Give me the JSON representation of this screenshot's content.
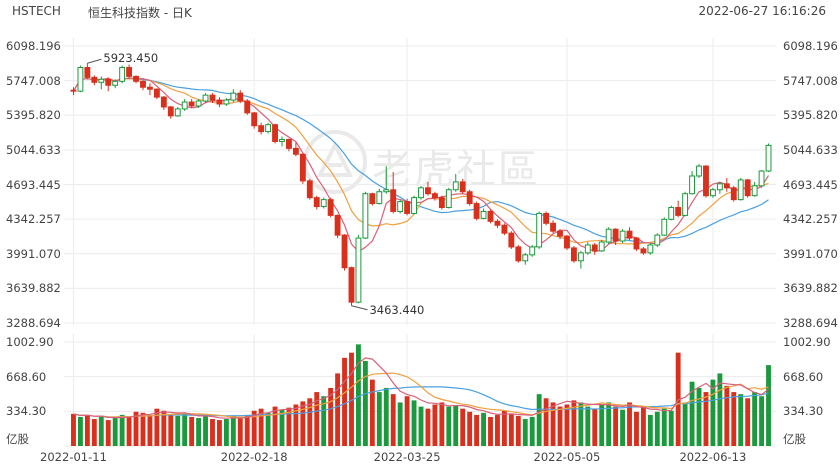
{
  "header": {
    "symbol": "HSTECH",
    "name": "恒生科技指数",
    "period": "- 日K",
    "datetime": "2022-06-27 16:16:26"
  },
  "watermark": {
    "text": "老虎社區",
    "icon": "tiger-logo-icon"
  },
  "colors": {
    "up": "#1a9a3c",
    "down": "#d9301e",
    "ma5": "#d9607a",
    "ma10": "#f0a040",
    "ma20": "#4aa0e0",
    "grid": "#ececec"
  },
  "chart_data": {
    "type": "candlestick",
    "price_axis": {
      "ticks": [
        "6098.196",
        "5747.008",
        "5395.820",
        "5044.633",
        "4693.445",
        "4342.257",
        "3991.070",
        "3639.882",
        "3288.694"
      ],
      "ylim": [
        3288.694,
        6098.196
      ]
    },
    "volume_axis": {
      "ticks": [
        "1002.90",
        "668.60",
        "334.30",
        "亿股"
      ],
      "ylim": [
        0,
        1002.9
      ],
      "unit": "亿股"
    },
    "x_ticks": [
      "2022-01-11",
      "2022-02-18",
      "2022-03-25",
      "2022-05-05",
      "2022-06-13"
    ],
    "annotations": [
      {
        "text": "5923.450",
        "value": 5923.45
      },
      {
        "text": "3463.440",
        "value": 3463.44
      }
    ],
    "ohlc": [
      [
        5650,
        5680,
        5600,
        5640
      ],
      [
        5640,
        5900,
        5630,
        5880
      ],
      [
        5880,
        5923.45,
        5760,
        5780
      ],
      [
        5780,
        5800,
        5700,
        5730
      ],
      [
        5730,
        5790,
        5660,
        5760
      ],
      [
        5760,
        5780,
        5640,
        5700
      ],
      [
        5700,
        5760,
        5670,
        5740
      ],
      [
        5740,
        5900,
        5720,
        5880
      ],
      [
        5880,
        5910,
        5770,
        5790
      ],
      [
        5790,
        5800,
        5720,
        5740
      ],
      [
        5740,
        5750,
        5650,
        5680
      ],
      [
        5680,
        5720,
        5600,
        5660
      ],
      [
        5660,
        5670,
        5560,
        5580
      ],
      [
        5580,
        5590,
        5450,
        5480
      ],
      [
        5480,
        5490,
        5360,
        5390
      ],
      [
        5390,
        5480,
        5380,
        5460
      ],
      [
        5460,
        5560,
        5440,
        5530
      ],
      [
        5530,
        5560,
        5470,
        5490
      ],
      [
        5490,
        5560,
        5470,
        5540
      ],
      [
        5540,
        5620,
        5520,
        5600
      ],
      [
        5600,
        5620,
        5520,
        5550
      ],
      [
        5550,
        5580,
        5480,
        5510
      ],
      [
        5510,
        5570,
        5490,
        5550
      ],
      [
        5550,
        5660,
        5530,
        5620
      ],
      [
        5620,
        5650,
        5520,
        5540
      ],
      [
        5540,
        5560,
        5400,
        5420
      ],
      [
        5420,
        5430,
        5260,
        5290
      ],
      [
        5290,
        5320,
        5200,
        5230
      ],
      [
        5230,
        5320,
        5210,
        5300
      ],
      [
        5300,
        5310,
        5110,
        5130
      ],
      [
        5130,
        5180,
        5080,
        5150
      ],
      [
        5150,
        5160,
        5030,
        5060
      ],
      [
        5060,
        5120,
        4980,
        5000
      ],
      [
        5000,
        5010,
        4700,
        4730
      ],
      [
        4730,
        4750,
        4540,
        4560
      ],
      [
        4560,
        4580,
        4440,
        4470
      ],
      [
        4470,
        4560,
        4450,
        4540
      ],
      [
        4540,
        4560,
        4360,
        4380
      ],
      [
        4380,
        4390,
        4150,
        4180
      ],
      [
        4180,
        4190,
        3820,
        3850
      ],
      [
        3850,
        3860,
        3463.44,
        3500
      ],
      [
        3500,
        4180,
        3490,
        4150
      ],
      [
        4150,
        4620,
        4140,
        4600
      ],
      [
        4600,
        4610,
        4480,
        4500
      ],
      [
        4500,
        4650,
        4490,
        4620
      ],
      [
        4620,
        4880,
        4600,
        4640
      ],
      [
        4640,
        4820,
        4400,
        4420
      ],
      [
        4420,
        4540,
        4400,
        4520
      ],
      [
        4520,
        4550,
        4380,
        4400
      ],
      [
        4400,
        4580,
        4390,
        4560
      ],
      [
        4560,
        4680,
        4540,
        4660
      ],
      [
        4660,
        4720,
        4580,
        4600
      ],
      [
        4600,
        4620,
        4530,
        4560
      ],
      [
        4560,
        4580,
        4440,
        4460
      ],
      [
        4460,
        4660,
        4450,
        4640
      ],
      [
        4640,
        4800,
        4620,
        4720
      ],
      [
        4720,
        4750,
        4600,
        4620
      ],
      [
        4620,
        4640,
        4480,
        4500
      ],
      [
        4500,
        4520,
        4330,
        4350
      ],
      [
        4350,
        4450,
        4340,
        4420
      ],
      [
        4420,
        4440,
        4300,
        4320
      ],
      [
        4320,
        4340,
        4250,
        4280
      ],
      [
        4280,
        4300,
        4180,
        4200
      ],
      [
        4200,
        4220,
        4040,
        4060
      ],
      [
        4060,
        4080,
        3900,
        3920
      ],
      [
        3920,
        4000,
        3880,
        3980
      ],
      [
        3980,
        4080,
        3960,
        4060
      ],
      [
        4060,
        4420,
        4040,
        4400
      ],
      [
        4400,
        4420,
        4280,
        4300
      ],
      [
        4300,
        4330,
        4200,
        4220
      ],
      [
        4220,
        4240,
        4140,
        4170
      ],
      [
        4170,
        4180,
        4030,
        4050
      ],
      [
        4050,
        4070,
        3900,
        3920
      ],
      [
        3920,
        4020,
        3840,
        4000
      ],
      [
        4000,
        4110,
        3980,
        4080
      ],
      [
        4080,
        4100,
        3980,
        4020
      ],
      [
        4020,
        4130,
        4010,
        4110
      ],
      [
        4110,
        4260,
        4090,
        4240
      ],
      [
        4240,
        4250,
        4080,
        4120
      ],
      [
        4120,
        4240,
        4100,
        4220
      ],
      [
        4220,
        4260,
        4130,
        4150
      ],
      [
        4150,
        4160,
        4020,
        4040
      ],
      [
        4040,
        4060,
        3980,
        4000
      ],
      [
        4000,
        4100,
        3980,
        4080
      ],
      [
        4080,
        4200,
        4060,
        4180
      ],
      [
        4180,
        4360,
        4170,
        4340
      ],
      [
        4340,
        4480,
        4330,
        4460
      ],
      [
        4460,
        4530,
        4360,
        4380
      ],
      [
        4380,
        4620,
        4370,
        4600
      ],
      [
        4600,
        4830,
        4590,
        4780
      ],
      [
        4780,
        4900,
        4760,
        4880
      ],
      [
        4880,
        4890,
        4560,
        4580
      ],
      [
        4580,
        4660,
        4560,
        4640
      ],
      [
        4640,
        4720,
        4600,
        4700
      ],
      [
        4700,
        4760,
        4620,
        4660
      ],
      [
        4660,
        4680,
        4520,
        4540
      ],
      [
        4540,
        4760,
        4530,
        4740
      ],
      [
        4740,
        4750,
        4560,
        4580
      ],
      [
        4580,
        4720,
        4570,
        4680
      ],
      [
        4680,
        4840,
        4660,
        4830
      ],
      [
        4830,
        5110,
        4820,
        5090
      ]
    ],
    "volume": [
      310,
      280,
      300,
      260,
      290,
      250,
      270,
      300,
      280,
      330,
      320,
      300,
      360,
      340,
      300,
      290,
      310,
      280,
      270,
      300,
      260,
      250,
      260,
      290,
      280,
      300,
      340,
      360,
      320,
      380,
      350,
      370,
      400,
      430,
      460,
      520,
      480,
      560,
      700,
      850,
      900,
      980,
      820,
      640,
      520,
      560,
      500,
      420,
      480,
      440,
      380,
      360,
      400,
      420,
      380,
      390,
      360,
      330,
      300,
      320,
      280,
      300,
      340,
      310,
      290,
      260,
      280,
      500,
      460,
      420,
      380,
      400,
      440,
      420,
      380,
      360,
      400,
      420,
      380,
      350,
      420,
      330,
      380,
      300,
      330,
      360,
      340,
      900,
      420,
      620,
      560,
      520,
      640,
      700,
      580,
      520,
      500,
      460,
      520,
      480,
      780
    ]
  }
}
